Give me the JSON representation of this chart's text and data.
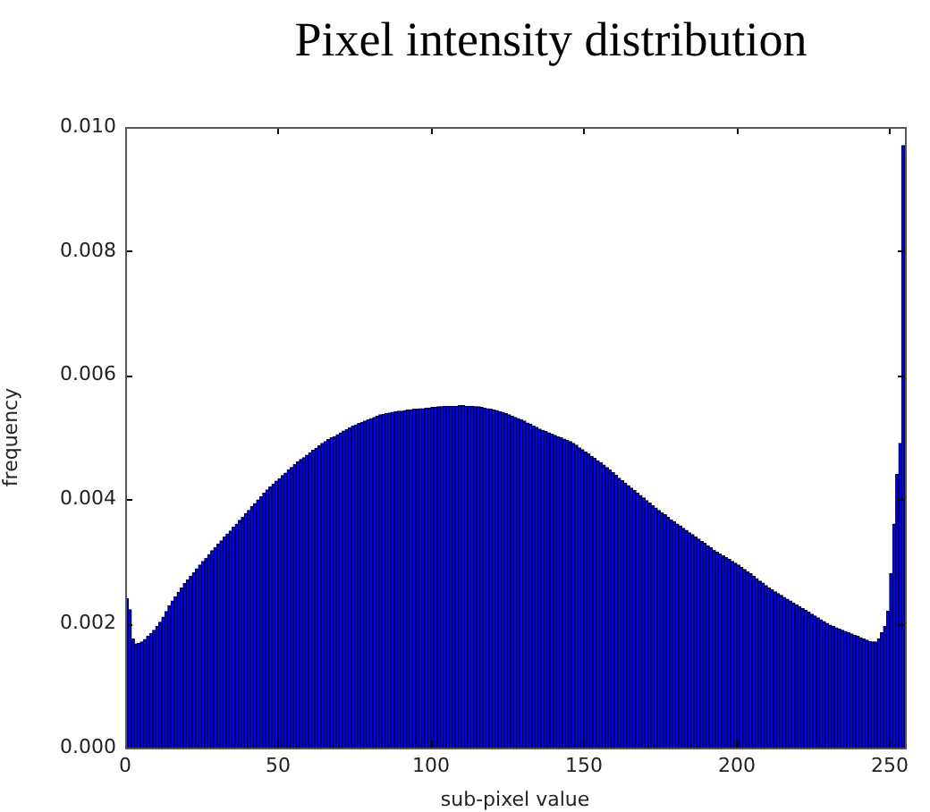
{
  "chart_data": {
    "type": "histogram",
    "title": "Pixel intensity distribution",
    "xlabel": "sub-pixel value",
    "ylabel": "frequency",
    "color": "#0000ff",
    "bins": [
      0,
      1,
      2,
      3,
      4,
      5,
      6,
      7,
      8,
      9,
      10,
      11,
      12,
      13,
      14,
      15,
      16,
      17,
      18,
      19,
      20,
      21,
      22,
      23,
      24,
      25,
      26,
      27,
      28,
      29,
      30,
      31,
      32,
      33,
      34,
      35,
      36,
      37,
      38,
      39,
      40,
      41,
      42,
      43,
      44,
      45,
      46,
      47,
      48,
      49,
      50,
      51,
      52,
      53,
      54,
      55,
      56,
      57,
      58,
      59,
      60,
      61,
      62,
      63,
      64,
      65,
      66,
      67,
      68,
      69,
      70,
      71,
      72,
      73,
      74,
      75,
      76,
      77,
      78,
      79,
      80,
      81,
      82,
      83,
      84,
      85,
      86,
      87,
      88,
      89,
      90,
      91,
      92,
      93,
      94,
      95,
      96,
      97,
      98,
      99,
      100,
      101,
      102,
      103,
      104,
      105,
      106,
      107,
      108,
      109,
      110,
      111,
      112,
      113,
      114,
      115,
      116,
      117,
      118,
      119,
      120,
      121,
      122,
      123,
      124,
      125,
      126,
      127,
      128,
      129,
      130,
      131,
      132,
      133,
      134,
      135,
      136,
      137,
      138,
      139,
      140,
      141,
      142,
      143,
      144,
      145,
      146,
      147,
      148,
      149,
      150,
      151,
      152,
      153,
      154,
      155,
      156,
      157,
      158,
      159,
      160,
      161,
      162,
      163,
      164,
      165,
      166,
      167,
      168,
      169,
      170,
      171,
      172,
      173,
      174,
      175,
      176,
      177,
      178,
      179,
      180,
      181,
      182,
      183,
      184,
      185,
      186,
      187,
      188,
      189,
      190,
      191,
      192,
      193,
      194,
      195,
      196,
      197,
      198,
      199,
      200,
      201,
      202,
      203,
      204,
      205,
      206,
      207,
      208,
      209,
      210,
      211,
      212,
      213,
      214,
      215,
      216,
      217,
      218,
      219,
      220,
      221,
      222,
      223,
      224,
      225,
      226,
      227,
      228,
      229,
      230,
      231,
      232,
      233,
      234,
      235,
      236,
      237,
      238,
      239,
      240,
      241,
      242,
      243,
      244,
      245,
      246,
      247,
      248,
      249,
      250,
      251,
      252,
      253,
      254,
      255
    ],
    "values": [
      0.0024,
      0.00222,
      0.00175,
      0.00167,
      0.00168,
      0.0017,
      0.00174,
      0.00179,
      0.00184,
      0.00189,
      0.00195,
      0.00202,
      0.0021,
      0.00219,
      0.00228,
      0.00236,
      0.00243,
      0.0025,
      0.00257,
      0.00264,
      0.0027,
      0.00276,
      0.00282,
      0.00288,
      0.00294,
      0.003,
      0.00305,
      0.00311,
      0.00317,
      0.00322,
      0.00328,
      0.00333,
      0.00339,
      0.00344,
      0.00349,
      0.00355,
      0.0036,
      0.00366,
      0.00371,
      0.00377,
      0.00382,
      0.00388,
      0.00393,
      0.00399,
      0.00404,
      0.0041,
      0.00415,
      0.0042,
      0.00424,
      0.00429,
      0.00433,
      0.00438,
      0.00442,
      0.00447,
      0.00451,
      0.00456,
      0.0046,
      0.00464,
      0.00467,
      0.00471,
      0.00475,
      0.00479,
      0.00482,
      0.00486,
      0.0049,
      0.00493,
      0.00496,
      0.00499,
      0.00501,
      0.00504,
      0.00507,
      0.0051,
      0.00512,
      0.00515,
      0.00518,
      0.0052,
      0.00522,
      0.00524,
      0.00526,
      0.00528,
      0.0053,
      0.00532,
      0.00534,
      0.00536,
      0.00537,
      0.00538,
      0.00539,
      0.0054,
      0.00541,
      0.00542,
      0.00542,
      0.00543,
      0.00544,
      0.00544,
      0.00545,
      0.00545,
      0.00546,
      0.00546,
      0.00547,
      0.00547,
      0.00548,
      0.00548,
      0.00549,
      0.00549,
      0.0055,
      0.0055,
      0.0055,
      0.0055,
      0.0055,
      0.00551,
      0.00551,
      0.0055,
      0.0055,
      0.0055,
      0.00549,
      0.00549,
      0.00548,
      0.00547,
      0.00546,
      0.00545,
      0.00544,
      0.00543,
      0.00541,
      0.0054,
      0.00538,
      0.00536,
      0.00534,
      0.00532,
      0.0053,
      0.00528,
      0.00526,
      0.00523,
      0.00521,
      0.00518,
      0.00516,
      0.00513,
      0.00511,
      0.00509,
      0.00507,
      0.00505,
      0.00503,
      0.00501,
      0.00499,
      0.00497,
      0.00495,
      0.00493,
      0.0049,
      0.00487,
      0.00483,
      0.0048,
      0.00476,
      0.00473,
      0.00469,
      0.00466,
      0.00462,
      0.00459,
      0.00455,
      0.00451,
      0.00447,
      0.00443,
      0.00439,
      0.00434,
      0.0043,
      0.00426,
      0.00422,
      0.00418,
      0.00414,
      0.0041,
      0.00406,
      0.00402,
      0.00398,
      0.00394,
      0.0039,
      0.00386,
      0.00382,
      0.00378,
      0.00375,
      0.00371,
      0.00367,
      0.00364,
      0.0036,
      0.00357,
      0.00353,
      0.0035,
      0.00346,
      0.00343,
      0.00339,
      0.00336,
      0.00332,
      0.00329,
      0.00325,
      0.00322,
      0.00318,
      0.00315,
      0.00312,
      0.00309,
      0.00306,
      0.00303,
      0.003,
      0.00297,
      0.00294,
      0.0029,
      0.00287,
      0.00283,
      0.0028,
      0.00276,
      0.00272,
      0.00268,
      0.00265,
      0.00261,
      0.00257,
      0.00254,
      0.00251,
      0.00248,
      0.00245,
      0.00242,
      0.00239,
      0.00236,
      0.00233,
      0.0023,
      0.00227,
      0.00224,
      0.00221,
      0.00218,
      0.00215,
      0.00212,
      0.00209,
      0.00206,
      0.00203,
      0.002,
      0.00197,
      0.00195,
      0.00193,
      0.00191,
      0.00189,
      0.00187,
      0.00185,
      0.00183,
      0.00181,
      0.00179,
      0.00177,
      0.00175,
      0.00173,
      0.00171,
      0.0017,
      0.0017,
      0.00175,
      0.00185,
      0.00195,
      0.0022,
      0.0028,
      0.0036,
      0.0044,
      0.0049,
      0.0097
    ],
    "xlim": [
      0,
      255
    ],
    "xticks": [
      0,
      50,
      100,
      150,
      200,
      250
    ],
    "ylim": [
      0,
      0.01
    ],
    "yticks": [
      {
        "value": 0,
        "label": "0.000"
      },
      0.002,
      0.004,
      0.006,
      0.008,
      {
        "value": 0.01,
        "label": "0.010"
      }
    ]
  }
}
